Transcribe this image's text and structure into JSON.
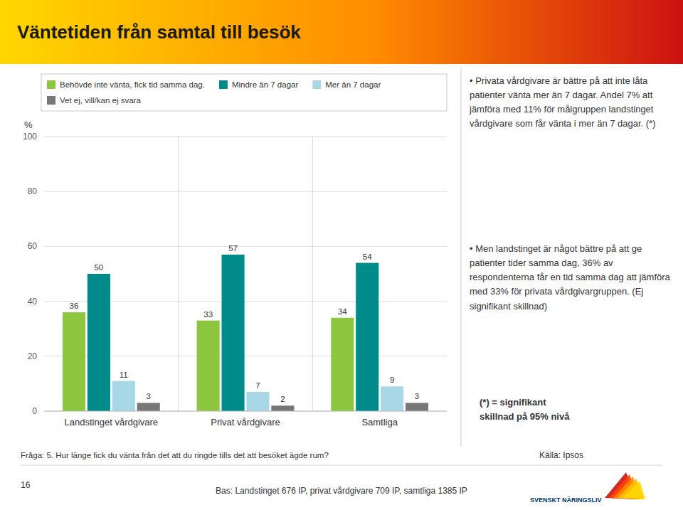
{
  "chart_data": {
    "type": "bar",
    "title": "Väntetiden från samtal till besök",
    "categories": [
      "Landstinget vårdgivare",
      "Privat vårdgivare",
      "Samtliga"
    ],
    "series": [
      {
        "name": "Behövde inte vänta, fick tid samma dag.",
        "color": "#8DC63F",
        "values": [
          36,
          33,
          34
        ]
      },
      {
        "name": "Mindre än 7 dagar",
        "color": "#008B8B",
        "values": [
          50,
          57,
          54
        ]
      },
      {
        "name": "Mer än 7 dagar",
        "color": "#A8D8E8",
        "values": [
          11,
          7,
          9
        ]
      },
      {
        "name": "Vet ej, vill/kan ej svara",
        "color": "#777777",
        "values": [
          3,
          2,
          3
        ]
      }
    ],
    "ylabel": "%",
    "ylim": [
      0,
      100
    ],
    "yticks": [
      0,
      20,
      40,
      60,
      80,
      100
    ],
    "grid": true,
    "legend": "top",
    "data_labels": true,
    "annotations": [
      "• Privata vårdgivare är bättre på att inte låta patienter vänta mer än 7 dagar. Andel 7% att jämföra med 11% för målgruppen landstinget vårdgivare som får vänta i mer än 7 dagar. (*)",
      "• Men landstinget är något bättre på att ge patienter tider samma dag, 36% av respondenterna får en tid samma dag att jämföra med 33% för privata vårdgivargruppen. (Ej signifikant skillnad)",
      "(*) = signifikant\nskillnad på 95% nivå",
      "Fråga: 5. Hur länge fick du vänta från det att du ringde tills det att besöket ägde rum?",
      "Bas: Landstinget 676 IP, privat vårdgivare 709 IP, samtliga 1385 IP",
      "16",
      "Källa: Ipsos",
      "SVENSKT NÄRINGSLIV"
    ]
  }
}
